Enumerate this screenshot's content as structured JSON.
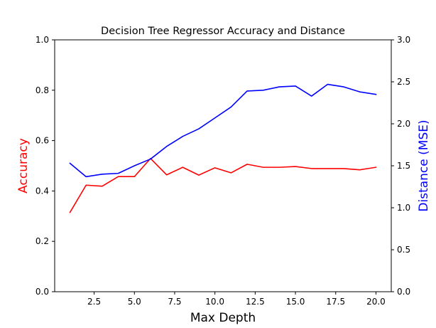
{
  "chart_data": {
    "type": "line",
    "title": "Decision Tree Regressor Accuracy and Distance",
    "xlabel": "Max Depth",
    "x": [
      1,
      2,
      3,
      4,
      5,
      6,
      7,
      8,
      9,
      10,
      11,
      12,
      13,
      14,
      15,
      16,
      17,
      18,
      19,
      20
    ],
    "xlim": [
      0.05,
      20.95
    ],
    "xticks": [
      2.5,
      5.0,
      7.5,
      10.0,
      12.5,
      15.0,
      17.5,
      20.0
    ],
    "xtick_labels": [
      "2.5",
      "5.0",
      "7.5",
      "10.0",
      "12.5",
      "15.0",
      "17.5",
      "20.0"
    ],
    "left_axis": {
      "label": "Accuracy",
      "color": "#ff0000",
      "ylim": [
        0.0,
        1.0
      ],
      "ticks": [
        0.0,
        0.2,
        0.4,
        0.6,
        0.8,
        1.0
      ],
      "tick_labels": [
        "0.0",
        "0.2",
        "0.4",
        "0.6",
        "0.8",
        "1.0"
      ]
    },
    "right_axis": {
      "label": "Distance (MSE)",
      "color": "#0000ff",
      "ylim": [
        0.0,
        3.0
      ],
      "ticks": [
        0.0,
        0.5,
        1.0,
        1.5,
        2.0,
        2.5,
        3.0
      ],
      "tick_labels": [
        "0.0",
        "0.5",
        "1.0",
        "1.5",
        "2.0",
        "2.5",
        "3.0"
      ]
    },
    "series": [
      {
        "axis": "left",
        "color": "#ff0000",
        "values": [
          0.315,
          0.423,
          0.419,
          0.457,
          0.457,
          0.529,
          0.464,
          0.494,
          0.463,
          0.492,
          0.472,
          0.506,
          0.494,
          0.494,
          0.497,
          0.489,
          0.489,
          0.489,
          0.484,
          0.494
        ]
      },
      {
        "axis": "right",
        "color": "#0000ff",
        "values": [
          1.53,
          1.37,
          1.4,
          1.41,
          1.5,
          1.58,
          1.73,
          1.85,
          1.94,
          2.07,
          2.2,
          2.39,
          2.4,
          2.44,
          2.45,
          2.33,
          2.47,
          2.44,
          2.38,
          2.35
        ]
      }
    ],
    "grid": false,
    "legend": "none"
  }
}
